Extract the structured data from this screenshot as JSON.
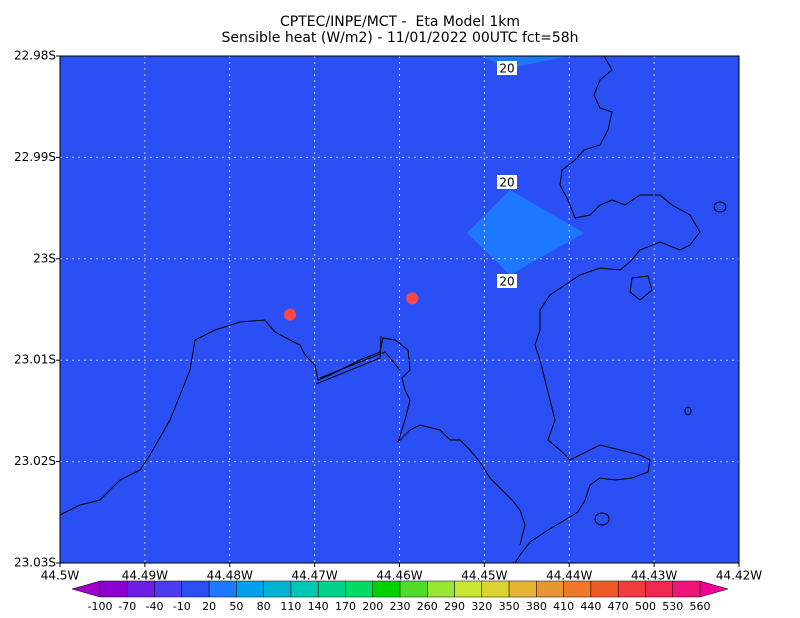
{
  "chart_data": {
    "type": "map",
    "title": "CPTEC/INPE/MCT -  Eta Model 1km",
    "subtitle": "Sensible heat (W/m2) - 11/01/2022 00UTC fct=58h",
    "xlim": [
      -44.5,
      -44.42
    ],
    "ylim": [
      -23.03,
      -22.98
    ],
    "xticks": [
      {
        "value": -44.5,
        "label": "44.5W"
      },
      {
        "value": -44.49,
        "label": "44.49W"
      },
      {
        "value": -44.48,
        "label": "44.48W"
      },
      {
        "value": -44.47,
        "label": "44.47W"
      },
      {
        "value": -44.46,
        "label": "44.46W"
      },
      {
        "value": -44.45,
        "label": "44.45W"
      },
      {
        "value": -44.44,
        "label": "44.44W"
      },
      {
        "value": -44.43,
        "label": "44.43W"
      },
      {
        "value": -44.42,
        "label": "44.42W"
      }
    ],
    "yticks": [
      {
        "value": -22.98,
        "label": "22.98S"
      },
      {
        "value": -22.99,
        "label": "22.99S"
      },
      {
        "value": -23.0,
        "label": "23S"
      },
      {
        "value": -23.01,
        "label": "23.01S"
      },
      {
        "value": -23.02,
        "label": "23.02S"
      },
      {
        "value": -23.03,
        "label": "23.03S"
      }
    ],
    "grid": true,
    "contour_labels": [
      20,
      20,
      20
    ],
    "points": {
      "x": [
        -44.4729,
        -44.4585
      ],
      "y": [
        -23.0055,
        -23.0039
      ],
      "color": "#ff4646"
    },
    "colorbar": {
      "levels": [
        -100,
        -70,
        -40,
        -10,
        20,
        50,
        80,
        110,
        140,
        170,
        200,
        230,
        260,
        290,
        320,
        350,
        380,
        410,
        440,
        470,
        500,
        530,
        560
      ],
      "colors": [
        "#a000c8",
        "#8c00d2",
        "#6e1ee6",
        "#4b3cf0",
        "#2a50f5",
        "#1e78ff",
        "#00a0f0",
        "#00b4d2",
        "#00c8b4",
        "#00d28c",
        "#00dc64",
        "#00d200",
        "#50dc28",
        "#96e632",
        "#c8e632",
        "#dcd232",
        "#e6b432",
        "#e69632",
        "#f07828",
        "#f05a28",
        "#f03c3c",
        "#f02850",
        "#f01478",
        "#f00096"
      ]
    }
  }
}
